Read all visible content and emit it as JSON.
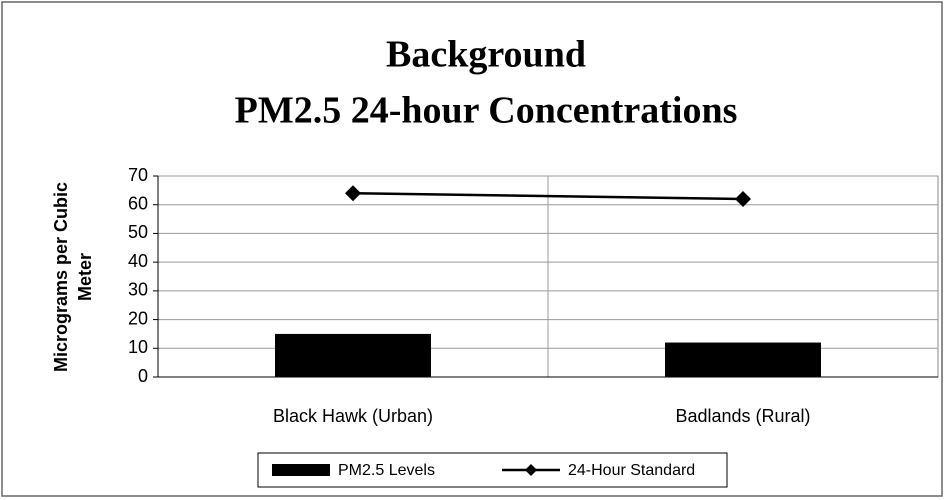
{
  "chart_data": {
    "type": "bar",
    "title": [
      "Background",
      "PM2.5 24-hour Concentrations"
    ],
    "ylabel": [
      "Micrograms per Cubic",
      "Meter"
    ],
    "categories": [
      "Black Hawk (Urban)",
      "Badlands (Rural)"
    ],
    "series": [
      {
        "name": "PM2.5 Levels",
        "type": "bar",
        "color": "#000000",
        "values": [
          15,
          12
        ]
      },
      {
        "name": "24-Hour Standard",
        "type": "line",
        "color": "#000000",
        "values": [
          64,
          62
        ]
      }
    ],
    "ylim": [
      0,
      70
    ],
    "yticks": [
      0,
      10,
      20,
      30,
      40,
      50,
      60,
      70
    ],
    "grid": true,
    "legend": "bottom"
  }
}
